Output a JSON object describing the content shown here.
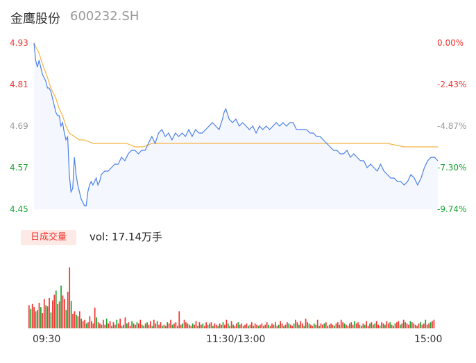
{
  "header": {
    "name": "金鹰股份",
    "code": "600232.SH"
  },
  "colors": {
    "up": "#f0352f",
    "down": "#1aa32f",
    "flat": "#999999",
    "price_line": "#4a7fe6",
    "avg_line": "#f5b342",
    "area": "#f4f7fd"
  },
  "price_labels": [
    {
      "value": "4.93",
      "color": "up"
    },
    {
      "value": "4.81",
      "color": "up"
    },
    {
      "value": "4.69",
      "color": "flat"
    },
    {
      "value": "4.57",
      "color": "down"
    },
    {
      "value": "4.45",
      "color": "down"
    }
  ],
  "pct_labels": [
    {
      "value": "0.00%",
      "color": "up"
    },
    {
      "value": "-2.43%",
      "color": "up"
    },
    {
      "value": "-4.87%",
      "color": "flat"
    },
    {
      "value": "-7.30%",
      "color": "down"
    },
    {
      "value": "-9.74%",
      "color": "down"
    }
  ],
  "volume": {
    "badge": "日成交量",
    "text": "vol: 17.14万手"
  },
  "time_labels": [
    "09:30",
    "11:30/13:00",
    "15:00"
  ],
  "chart_data": {
    "type": "line",
    "ylim": [
      4.45,
      4.93
    ],
    "x_range": [
      0,
      240
    ],
    "price": [
      [
        0,
        4.93
      ],
      [
        1,
        4.88
      ],
      [
        2,
        4.86
      ],
      [
        3,
        4.88
      ],
      [
        4,
        4.86
      ],
      [
        5,
        4.84
      ],
      [
        6,
        4.83
      ],
      [
        7,
        4.82
      ],
      [
        8,
        4.8
      ],
      [
        9,
        4.8
      ],
      [
        10,
        4.79
      ],
      [
        11,
        4.77
      ],
      [
        12,
        4.75
      ],
      [
        13,
        4.73
      ],
      [
        14,
        4.72
      ],
      [
        15,
        4.72
      ],
      [
        16,
        4.69
      ],
      [
        17,
        4.7
      ],
      [
        18,
        4.67
      ],
      [
        19,
        4.65
      ],
      [
        20,
        4.66
      ],
      [
        21,
        4.55
      ],
      [
        22,
        4.5
      ],
      [
        23,
        4.51
      ],
      [
        24,
        4.6
      ],
      [
        25,
        4.55
      ],
      [
        26,
        4.52
      ],
      [
        27,
        4.5
      ],
      [
        28,
        4.48
      ],
      [
        29,
        4.47
      ],
      [
        30,
        4.46
      ],
      [
        31,
        4.46
      ],
      [
        32,
        4.5
      ],
      [
        33,
        4.52
      ],
      [
        34,
        4.53
      ],
      [
        35,
        4.52
      ],
      [
        36,
        4.53
      ],
      [
        37,
        4.54
      ],
      [
        38,
        4.52
      ],
      [
        39,
        4.53
      ],
      [
        40,
        4.55
      ],
      [
        42,
        4.56
      ],
      [
        44,
        4.56
      ],
      [
        46,
        4.57
      ],
      [
        48,
        4.58
      ],
      [
        50,
        4.58
      ],
      [
        52,
        4.6
      ],
      [
        54,
        4.59
      ],
      [
        56,
        4.61
      ],
      [
        58,
        4.62
      ],
      [
        60,
        4.62
      ],
      [
        62,
        4.61
      ],
      [
        64,
        4.62
      ],
      [
        66,
        4.62
      ],
      [
        68,
        4.64
      ],
      [
        70,
        4.66
      ],
      [
        72,
        4.64
      ],
      [
        74,
        4.67
      ],
      [
        76,
        4.68
      ],
      [
        78,
        4.66
      ],
      [
        80,
        4.67
      ],
      [
        82,
        4.65
      ],
      [
        84,
        4.67
      ],
      [
        86,
        4.66
      ],
      [
        88,
        4.67
      ],
      [
        90,
        4.66
      ],
      [
        92,
        4.68
      ],
      [
        94,
        4.66
      ],
      [
        96,
        4.68
      ],
      [
        98,
        4.67
      ],
      [
        100,
        4.67
      ],
      [
        102,
        4.68
      ],
      [
        104,
        4.69
      ],
      [
        106,
        4.7
      ],
      [
        108,
        4.69
      ],
      [
        110,
        4.68
      ],
      [
        112,
        4.71
      ],
      [
        113,
        4.73
      ],
      [
        114,
        4.74
      ],
      [
        116,
        4.71
      ],
      [
        118,
        4.7
      ],
      [
        120,
        4.71
      ],
      [
        122,
        4.69
      ],
      [
        124,
        4.7
      ],
      [
        126,
        4.69
      ],
      [
        128,
        4.68
      ],
      [
        130,
        4.69
      ],
      [
        132,
        4.67
      ],
      [
        134,
        4.69
      ],
      [
        136,
        4.68
      ],
      [
        138,
        4.69
      ],
      [
        140,
        4.68
      ],
      [
        142,
        4.69
      ],
      [
        144,
        4.7
      ],
      [
        146,
        4.69
      ],
      [
        148,
        4.7
      ],
      [
        150,
        4.69
      ],
      [
        152,
        4.7
      ],
      [
        154,
        4.7
      ],
      [
        156,
        4.68
      ],
      [
        158,
        4.68
      ],
      [
        160,
        4.68
      ],
      [
        162,
        4.68
      ],
      [
        164,
        4.67
      ],
      [
        166,
        4.67
      ],
      [
        168,
        4.66
      ],
      [
        170,
        4.66
      ],
      [
        172,
        4.65
      ],
      [
        174,
        4.64
      ],
      [
        176,
        4.63
      ],
      [
        178,
        4.62
      ],
      [
        180,
        4.62
      ],
      [
        182,
        4.61
      ],
      [
        184,
        4.61
      ],
      [
        186,
        4.62
      ],
      [
        188,
        4.6
      ],
      [
        190,
        4.61
      ],
      [
        192,
        4.6
      ],
      [
        194,
        4.59
      ],
      [
        196,
        4.59
      ],
      [
        198,
        4.57
      ],
      [
        200,
        4.58
      ],
      [
        202,
        4.57
      ],
      [
        204,
        4.56
      ],
      [
        206,
        4.58
      ],
      [
        208,
        4.56
      ],
      [
        210,
        4.55
      ],
      [
        212,
        4.54
      ],
      [
        214,
        4.54
      ],
      [
        216,
        4.53
      ],
      [
        218,
        4.53
      ],
      [
        220,
        4.52
      ],
      [
        222,
        4.53
      ],
      [
        224,
        4.55
      ],
      [
        226,
        4.54
      ],
      [
        228,
        4.52
      ],
      [
        230,
        4.54
      ],
      [
        232,
        4.57
      ],
      [
        234,
        4.59
      ],
      [
        236,
        4.6
      ],
      [
        238,
        4.6
      ],
      [
        240,
        4.59
      ]
    ],
    "avg": [
      [
        0,
        4.93
      ],
      [
        1,
        4.92
      ],
      [
        3,
        4.9
      ],
      [
        5,
        4.87
      ],
      [
        8,
        4.83
      ],
      [
        10,
        4.8
      ],
      [
        13,
        4.77
      ],
      [
        15,
        4.74
      ],
      [
        17,
        4.72
      ],
      [
        19,
        4.69
      ],
      [
        20,
        4.68
      ],
      [
        21,
        4.67
      ],
      [
        24,
        4.66
      ],
      [
        27,
        4.65
      ],
      [
        30,
        4.65
      ],
      [
        35,
        4.64
      ],
      [
        40,
        4.64
      ],
      [
        45,
        4.64
      ],
      [
        50,
        4.64
      ],
      [
        55,
        4.64
      ],
      [
        60,
        4.63
      ],
      [
        65,
        4.63
      ],
      [
        70,
        4.64
      ],
      [
        80,
        4.64
      ],
      [
        90,
        4.64
      ],
      [
        100,
        4.64
      ],
      [
        110,
        4.64
      ],
      [
        120,
        4.64
      ],
      [
        130,
        4.64
      ],
      [
        140,
        4.64
      ],
      [
        150,
        4.64
      ],
      [
        160,
        4.64
      ],
      [
        170,
        4.64
      ],
      [
        180,
        4.64
      ],
      [
        190,
        4.64
      ],
      [
        200,
        4.64
      ],
      [
        210,
        4.64
      ],
      [
        220,
        4.63
      ],
      [
        230,
        4.63
      ],
      [
        240,
        4.63
      ]
    ],
    "volume_ylim": [
      0,
      100
    ],
    "volume": [
      38,
      32,
      40,
      35,
      28,
      30,
      42,
      35,
      25,
      48,
      38,
      36,
      50,
      26,
      46,
      55,
      62,
      40,
      44,
      70,
      54,
      48,
      30,
      60,
      100,
      45,
      24,
      28,
      22,
      20,
      28,
      16,
      12,
      14,
      8,
      10,
      20,
      12,
      8,
      34,
      18,
      10,
      8,
      6,
      14,
      6,
      16,
      8,
      12,
      4,
      10,
      6,
      14,
      8,
      16,
      4,
      6,
      18,
      8,
      10,
      4,
      12,
      8,
      6,
      10,
      8,
      14,
      6,
      4,
      8,
      10,
      6,
      12,
      4,
      14,
      8,
      12,
      6,
      10,
      4,
      6,
      4,
      10,
      8,
      14,
      6,
      8,
      10,
      4,
      28,
      6,
      8,
      14,
      10,
      8,
      6,
      4,
      8,
      6,
      12,
      4,
      10,
      6,
      8,
      4,
      10,
      6,
      8,
      10,
      4,
      8,
      6,
      4,
      8,
      6,
      10,
      6,
      14,
      8,
      4,
      12,
      6,
      4,
      8,
      10,
      6,
      8,
      4,
      6,
      8,
      4,
      6,
      10,
      4,
      8,
      6,
      4,
      6,
      8,
      4,
      6,
      10,
      6,
      4,
      8,
      6,
      10,
      4,
      6,
      12,
      8,
      4,
      6,
      10,
      8,
      6,
      4,
      8,
      14,
      10,
      6,
      12,
      8,
      4,
      16,
      10,
      8,
      6,
      4,
      8,
      6,
      14,
      4,
      8,
      6,
      8,
      10,
      4,
      6,
      8,
      6,
      4,
      8,
      10,
      6,
      14,
      10,
      8,
      6,
      4,
      8,
      10,
      6,
      12,
      8,
      10,
      6,
      4,
      8,
      6,
      12,
      4,
      8,
      10,
      6,
      8,
      12,
      6,
      4,
      10,
      8,
      6,
      12,
      8,
      10,
      6,
      4,
      8,
      10,
      12,
      6,
      8,
      14,
      10,
      8,
      6,
      12,
      10,
      8,
      6,
      4,
      8,
      10,
      6,
      8,
      14,
      6,
      8,
      10,
      12,
      14
    ]
  }
}
